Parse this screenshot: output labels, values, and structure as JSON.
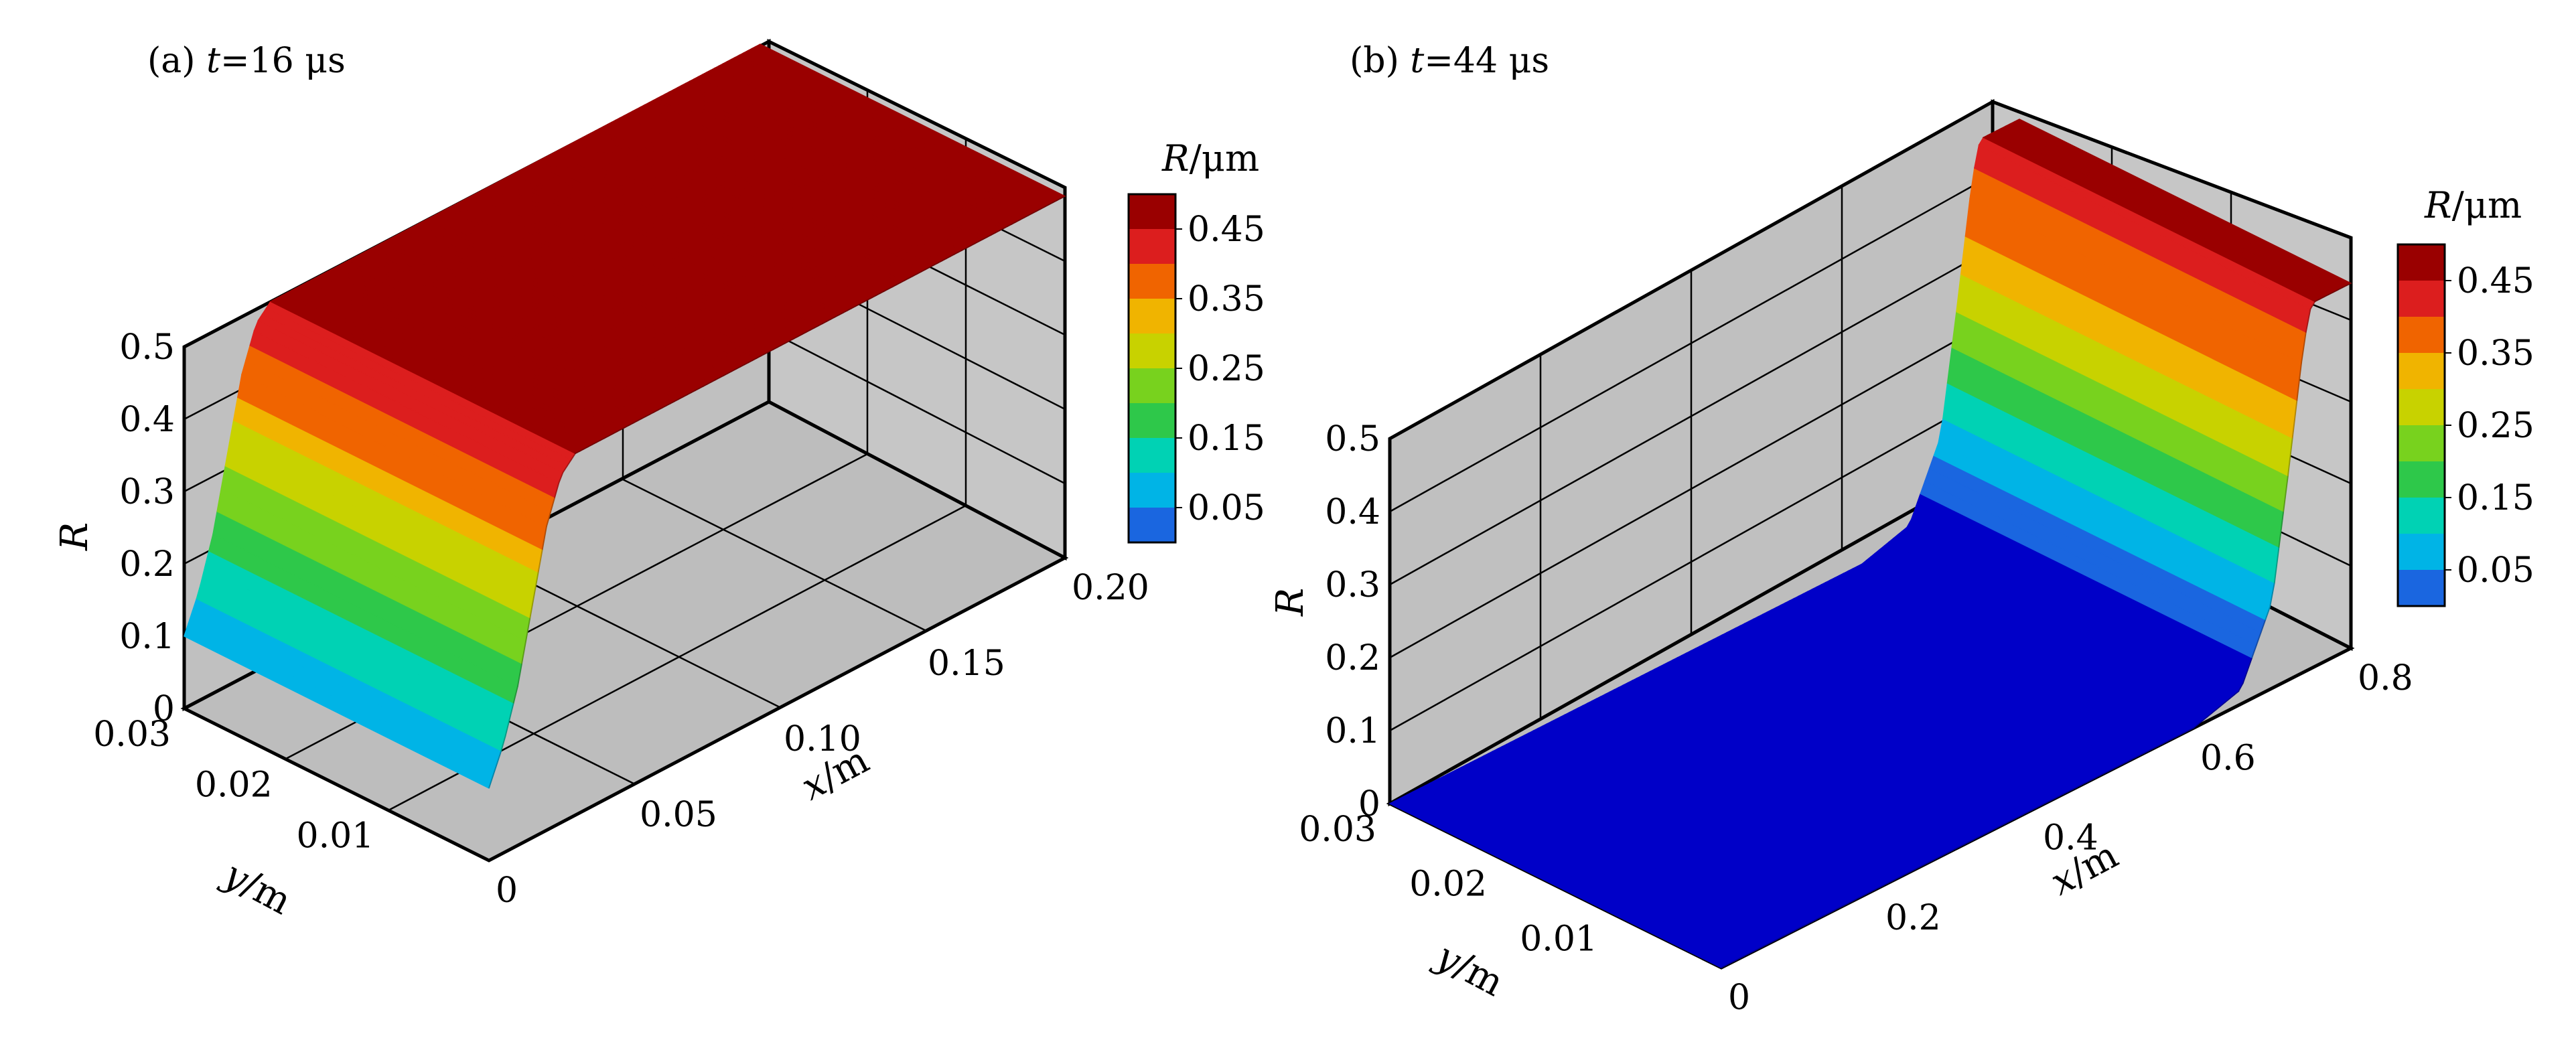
{
  "chart_data": [
    {
      "type": "surface3d",
      "panel": "(a)",
      "title_var": "t",
      "title_value": "=16 μs",
      "xlabel_var": "x",
      "xlabel_unit": "/m",
      "ylabel_var": "y",
      "ylabel_unit": "/m",
      "zlabel": "R",
      "x_ticks": [
        "0",
        "0.05",
        "0.10",
        "0.15",
        "0.20"
      ],
      "y_ticks": [
        "0.03",
        "0.02",
        "0.01"
      ],
      "z_ticks": [
        "0.5",
        "0.4",
        "0.3",
        "0.2",
        "0.1",
        "0"
      ],
      "xlim": [
        0,
        0.2
      ],
      "ylim": [
        0,
        0.03
      ],
      "zlim": [
        0,
        0.5
      ],
      "description_points": [
        {
          "x": 0.0,
          "R": 0.1
        },
        {
          "x": 0.005,
          "R": 0.15
        },
        {
          "x": 0.01,
          "R": 0.22
        },
        {
          "x": 0.015,
          "R": 0.32
        },
        {
          "x": 0.02,
          "R": 0.42
        },
        {
          "x": 0.025,
          "R": 0.48
        },
        {
          "x": 0.03,
          "R": 0.5
        },
        {
          "x": 0.2,
          "R": 0.5
        }
      ],
      "colorbar": {
        "label_var": "R",
        "label_unit": "/μm",
        "levels": [
          "0.45",
          "0.35",
          "0.25",
          "0.15",
          "0.05"
        ]
      }
    },
    {
      "type": "surface3d",
      "panel": "(b)",
      "title_var": "t",
      "title_value": "=44 μs",
      "xlabel_var": "x",
      "xlabel_unit": "/m",
      "ylabel_var": "y",
      "ylabel_unit": "/m",
      "zlabel": "R",
      "x_ticks": [
        "0",
        "0.2",
        "0.4",
        "0.6",
        "0.8"
      ],
      "y_ticks": [
        "0.03",
        "0.02",
        "0.01"
      ],
      "z_ticks": [
        "0.5",
        "0.4",
        "0.3",
        "0.2",
        "0.1",
        "0"
      ],
      "xlim": [
        0,
        0.8
      ],
      "ylim": [
        0,
        0.03
      ],
      "zlim": [
        0,
        0.5
      ],
      "description_points": [
        {
          "x": 0.0,
          "R": 0.0
        },
        {
          "x": 0.6,
          "R": 0.0
        },
        {
          "x": 0.66,
          "R": 0.02
        },
        {
          "x": 0.7,
          "R": 0.12
        },
        {
          "x": 0.72,
          "R": 0.28
        },
        {
          "x": 0.74,
          "R": 0.45
        },
        {
          "x": 0.75,
          "R": 0.5
        }
      ],
      "colorbar": {
        "label_var": "R",
        "label_unit": "/μm",
        "levels": [
          "0.45",
          "0.35",
          "0.25",
          "0.15",
          "0.05"
        ]
      }
    }
  ],
  "colors": {
    "wall": "#c0c0c0",
    "wall_line": "#000000",
    "levels": [
      "#0000c8",
      "#1a66e0",
      "#00b4e6",
      "#00d2b4",
      "#2ec84a",
      "#78d21e",
      "#c8d200",
      "#f0b400",
      "#f06400",
      "#dc1e1e",
      "#9a0000"
    ]
  }
}
